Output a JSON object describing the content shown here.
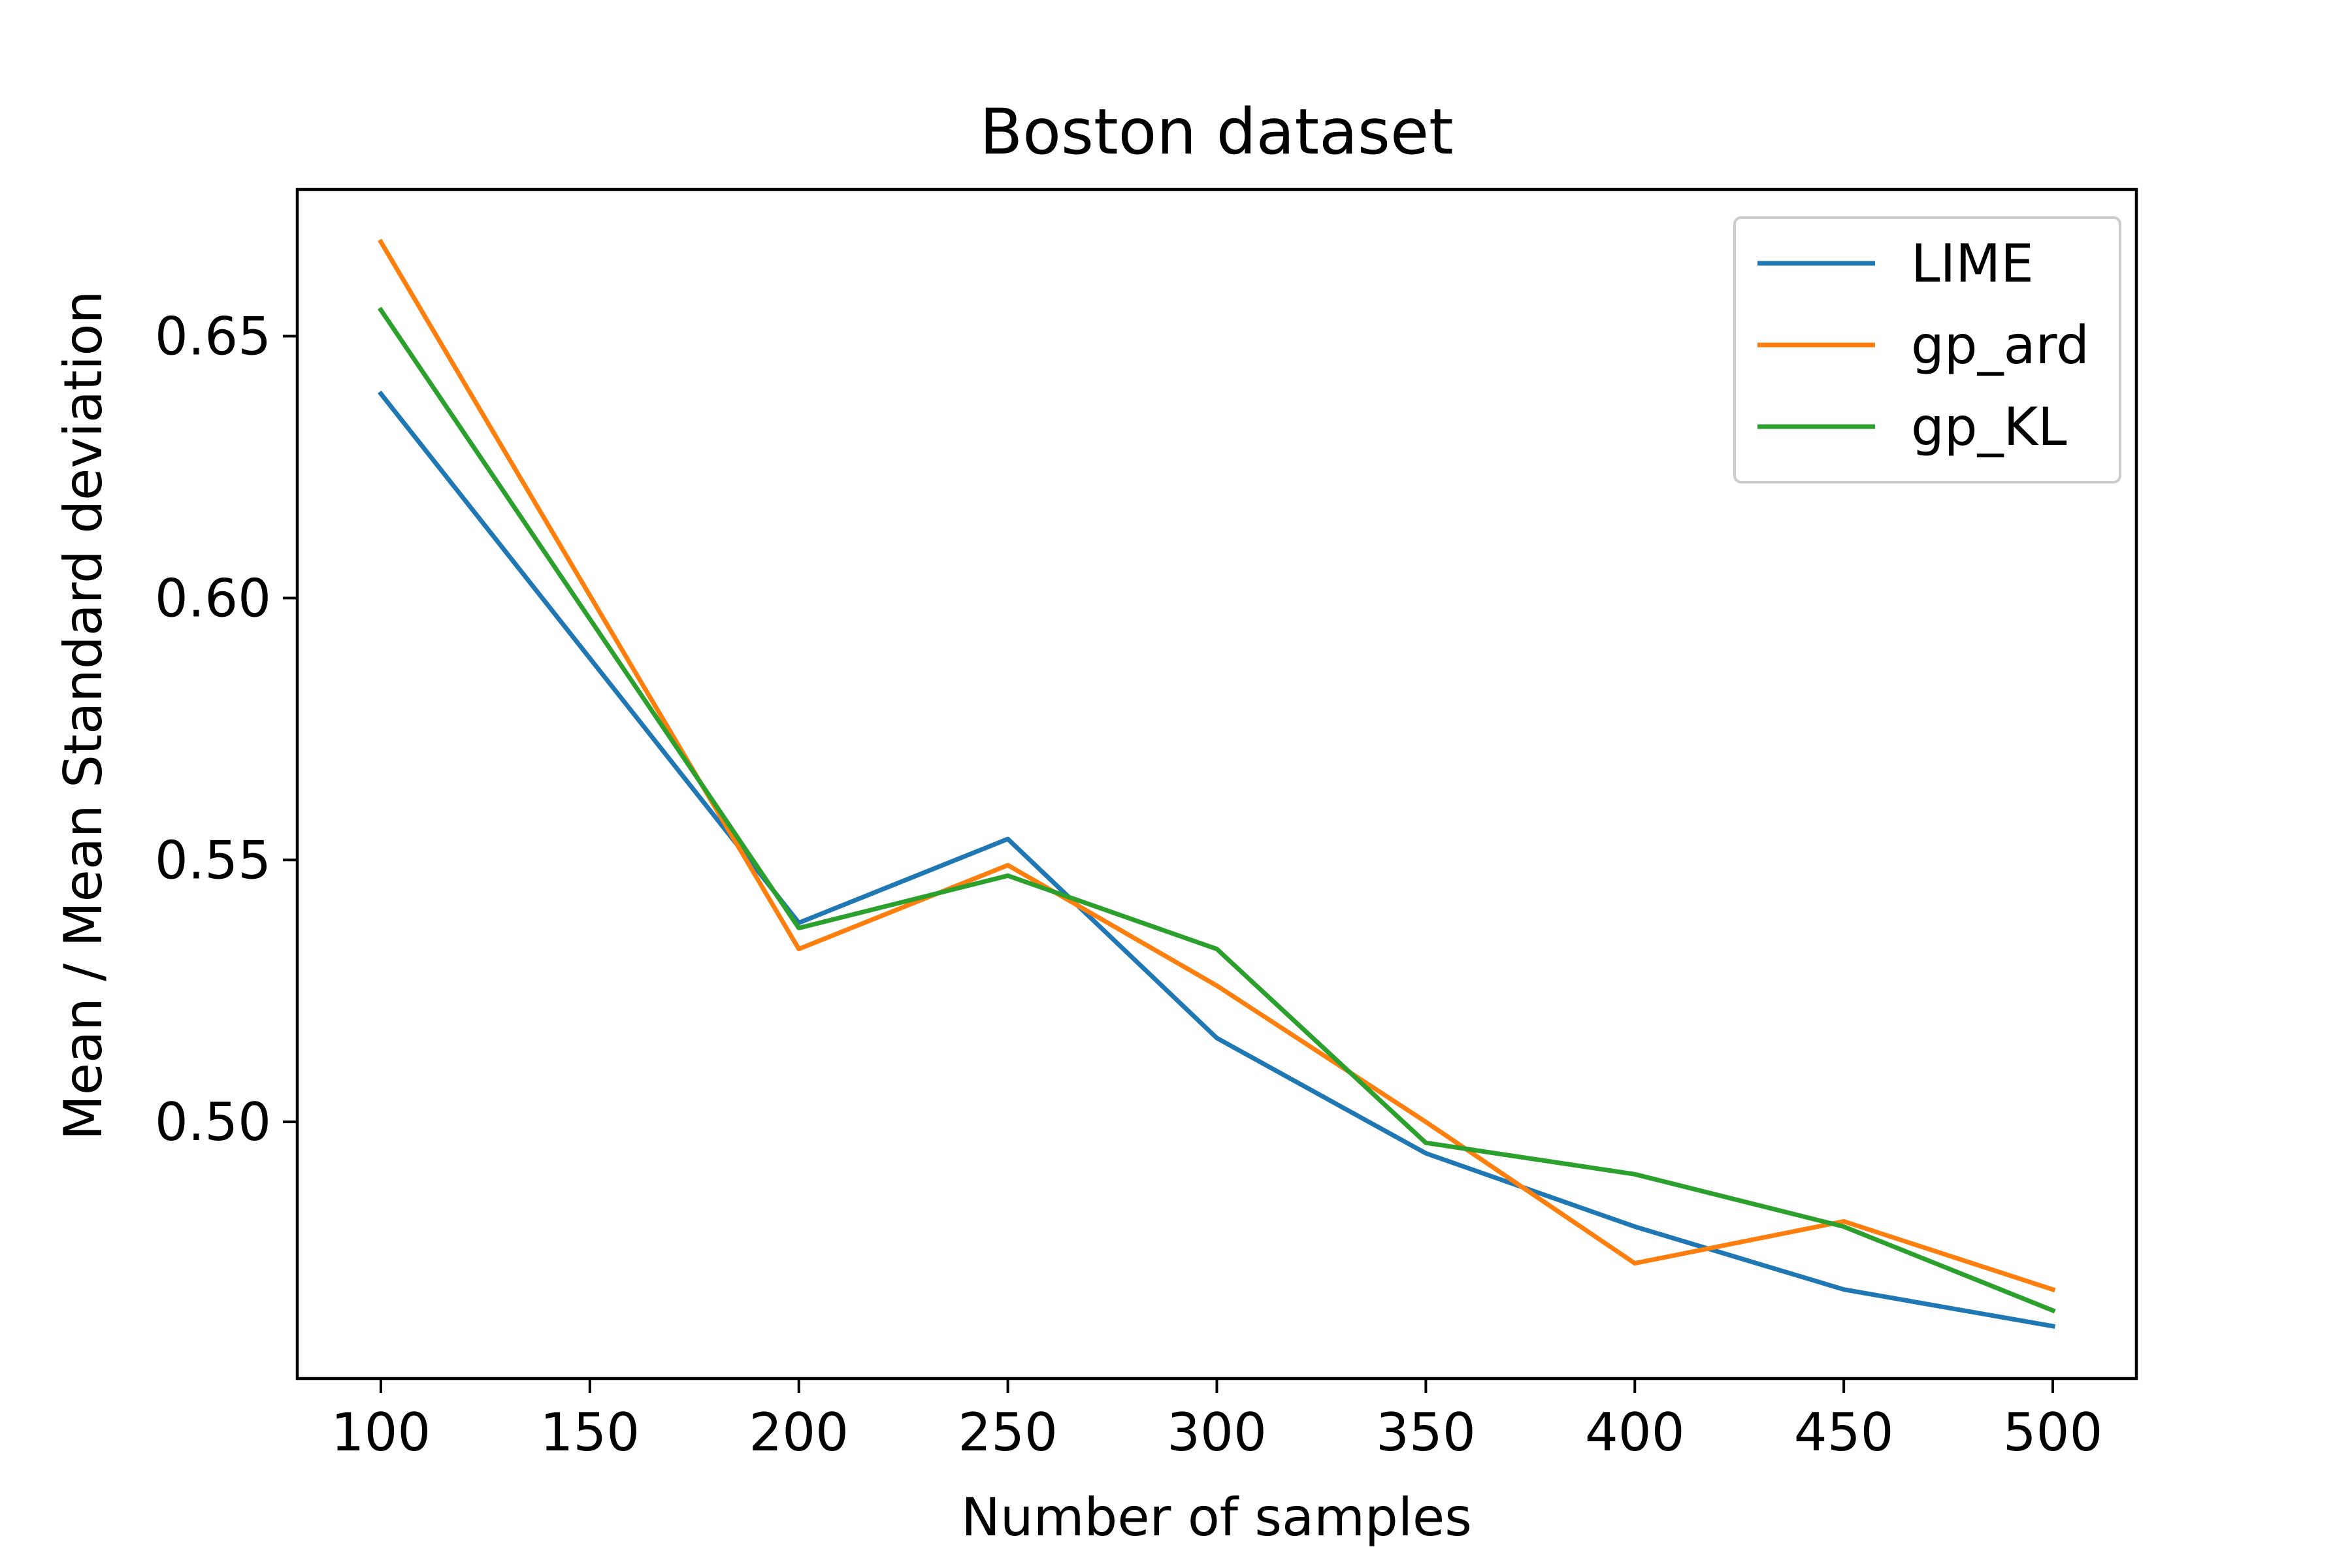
{
  "chart_data": {
    "type": "line",
    "title": "Boston dataset",
    "xlabel": "Number of samples",
    "ylabel": "Mean / Mean Standard deviation",
    "x": [
      100,
      200,
      250,
      300,
      350,
      400,
      450,
      500
    ],
    "xlim": [
      80,
      520
    ],
    "ylim": [
      0.451,
      0.678
    ],
    "xticks": [
      100,
      150,
      200,
      250,
      300,
      350,
      400,
      450,
      500
    ],
    "xtick_labels": [
      "100",
      "150",
      "200",
      "250",
      "300",
      "350",
      "400",
      "450",
      "500"
    ],
    "yticks": [
      0.5,
      0.55,
      0.6,
      0.65
    ],
    "ytick_labels": [
      "0.50",
      "0.55",
      "0.60",
      "0.65"
    ],
    "grid": false,
    "legend_position": "top-right",
    "series": [
      {
        "name": "LIME",
        "color": "#1f77b4",
        "values": [
          0.639,
          0.538,
          0.554,
          0.516,
          0.494,
          0.48,
          0.468,
          0.461
        ]
      },
      {
        "name": "gp_ard",
        "color": "#ff7f0e",
        "values": [
          0.668,
          0.533,
          0.549,
          0.526,
          0.5,
          0.473,
          0.481,
          0.468
        ]
      },
      {
        "name": "gp_KL",
        "color": "#2ca02c",
        "values": [
          0.655,
          0.537,
          0.547,
          0.533,
          0.496,
          0.49,
          0.48,
          0.464
        ]
      }
    ]
  }
}
